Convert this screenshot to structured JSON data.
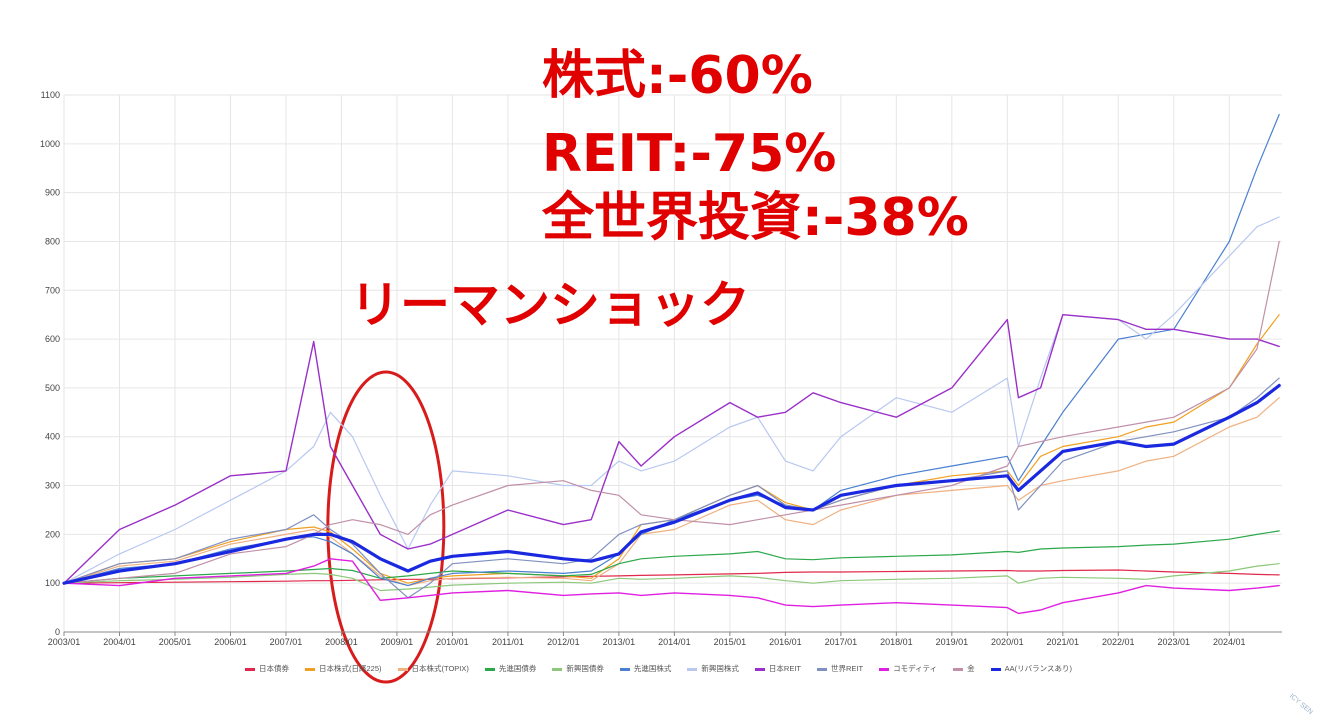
{
  "annotations": {
    "stock": "株式:-60%",
    "reit": "REIT:-75%",
    "world": "全世界投資:-38%",
    "lehman": "リーマンショック"
  },
  "highlight_color": "#d81b1b",
  "watermark": "ICY SEN",
  "chart_data": {
    "type": "line",
    "title": "",
    "xlabel": "",
    "ylabel": "",
    "ylim": [
      0,
      1100
    ],
    "yticks": [
      0,
      100,
      200,
      300,
      400,
      500,
      600,
      700,
      800,
      900,
      1000,
      1100
    ],
    "x_ticks": [
      "2003/01",
      "2004/01",
      "2005/01",
      "2006/01",
      "2007/01",
      "2008/01",
      "2009/01",
      "2010/01",
      "2011/01",
      "2012/01",
      "2013/01",
      "2014/01",
      "2015/01",
      "2016/01",
      "2017/01",
      "2018/01",
      "2019/01",
      "2020/01",
      "2021/01",
      "2022/01",
      "2023/01",
      "2024/01"
    ],
    "x": [
      2003.0,
      2004.0,
      2005.0,
      2006.0,
      2007.0,
      2007.5,
      2007.8,
      2008.2,
      2008.7,
      2009.2,
      2009.6,
      2010.0,
      2011.0,
      2012.0,
      2012.5,
      2013.0,
      2013.4,
      2014.0,
      2015.0,
      2015.5,
      2016.0,
      2016.5,
      2017.0,
      2018.0,
      2019.0,
      2020.0,
      2020.2,
      2020.6,
      2021.0,
      2022.0,
      2022.5,
      2023.0,
      2024.0,
      2024.5,
      2024.9
    ],
    "grid": true,
    "legend_position": "bottom",
    "series": [
      {
        "name": "日本債券",
        "color": "#e0284a",
        "width": 1.2,
        "values": [
          100,
          101,
          102,
          103,
          104,
          105,
          105,
          106,
          107,
          108,
          108,
          109,
          111,
          113,
          114,
          115,
          116,
          117,
          119,
          120,
          122,
          123,
          123,
          124,
          125,
          126,
          125,
          125,
          126,
          127,
          125,
          123,
          120,
          118,
          117
        ]
      },
      {
        "name": "日本株式(日経225)",
        "color": "#f0a020",
        "width": 1.2,
        "values": [
          100,
          140,
          150,
          185,
          210,
          215,
          205,
          170,
          120,
          100,
          110,
          115,
          120,
          115,
          110,
          150,
          220,
          230,
          280,
          300,
          265,
          250,
          270,
          300,
          320,
          330,
          300,
          360,
          380,
          400,
          420,
          430,
          500,
          590,
          650
        ]
      },
      {
        "name": "日本株式(TOPIX)",
        "color": "#f0b080",
        "width": 1.2,
        "values": [
          100,
          135,
          145,
          180,
          200,
          210,
          195,
          160,
          115,
          95,
          105,
          110,
          112,
          110,
          105,
          140,
          200,
          210,
          260,
          270,
          230,
          220,
          250,
          280,
          290,
          300,
          270,
          300,
          310,
          330,
          350,
          360,
          420,
          440,
          480
        ]
      },
      {
        "name": "先進国債券",
        "color": "#2ca84a",
        "width": 1.2,
        "values": [
          100,
          110,
          115,
          120,
          125,
          128,
          130,
          126,
          110,
          115,
          120,
          125,
          120,
          115,
          118,
          140,
          150,
          155,
          160,
          165,
          150,
          148,
          152,
          155,
          158,
          165,
          163,
          170,
          172,
          175,
          178,
          180,
          190,
          200,
          207
        ]
      },
      {
        "name": "新興国債券",
        "color": "#8cc87a",
        "width": 1.2,
        "values": [
          100,
          105,
          108,
          112,
          118,
          120,
          118,
          110,
          85,
          88,
          92,
          96,
          100,
          102,
          100,
          110,
          108,
          110,
          115,
          112,
          105,
          100,
          105,
          108,
          110,
          115,
          100,
          110,
          112,
          110,
          108,
          115,
          125,
          135,
          140
        ]
      },
      {
        "name": "先進国株式",
        "color": "#4a80d0",
        "width": 1.2,
        "values": [
          100,
          130,
          140,
          170,
          190,
          195,
          185,
          160,
          110,
          95,
          110,
          120,
          125,
          120,
          125,
          160,
          200,
          230,
          270,
          280,
          260,
          250,
          290,
          320,
          340,
          360,
          310,
          380,
          450,
          600,
          610,
          620,
          800,
          950,
          1060
        ]
      },
      {
        "name": "新興国株式",
        "color": "#b8c8f0",
        "width": 1.2,
        "values": [
          100,
          160,
          210,
          270,
          330,
          380,
          450,
          400,
          280,
          170,
          260,
          330,
          320,
          300,
          300,
          350,
          330,
          350,
          420,
          440,
          350,
          330,
          400,
          480,
          450,
          520,
          380,
          520,
          650,
          640,
          600,
          650,
          770,
          830,
          850
        ]
      },
      {
        "name": "日本REIT",
        "color": "#9a30c8",
        "width": 1.4,
        "values": [
          100,
          210,
          260,
          320,
          330,
          595,
          380,
          300,
          200,
          170,
          180,
          200,
          250,
          220,
          230,
          390,
          340,
          400,
          470,
          440,
          450,
          490,
          470,
          440,
          500,
          640,
          480,
          500,
          650,
          640,
          620,
          620,
          600,
          600,
          585
        ]
      },
      {
        "name": "世界REIT",
        "color": "#8090c0",
        "width": 1.2,
        "values": [
          100,
          140,
          150,
          190,
          210,
          240,
          210,
          180,
          120,
          70,
          100,
          140,
          150,
          140,
          150,
          200,
          220,
          230,
          280,
          300,
          260,
          250,
          270,
          300,
          310,
          330,
          250,
          300,
          350,
          390,
          400,
          410,
          440,
          480,
          520
        ]
      },
      {
        "name": "コモディティ",
        "color": "#e020e0",
        "width": 1.4,
        "values": [
          100,
          95,
          110,
          115,
          120,
          135,
          150,
          145,
          65,
          70,
          75,
          80,
          85,
          75,
          78,
          80,
          75,
          80,
          75,
          70,
          55,
          52,
          55,
          60,
          55,
          50,
          38,
          45,
          60,
          80,
          95,
          90,
          85,
          90,
          95
        ]
      },
      {
        "name": "金",
        "color": "#c090a8",
        "width": 1.2,
        "values": [
          100,
          110,
          120,
          160,
          175,
          200,
          220,
          230,
          220,
          200,
          240,
          260,
          300,
          310,
          290,
          280,
          240,
          230,
          220,
          230,
          240,
          250,
          260,
          280,
          300,
          340,
          380,
          390,
          400,
          420,
          430,
          440,
          500,
          580,
          800
        ]
      },
      {
        "name": "AA(リバランスあり)",
        "color": "#1a28e0",
        "width": 3.2,
        "values": [
          100,
          125,
          140,
          165,
          190,
          200,
          200,
          185,
          150,
          125,
          145,
          155,
          165,
          150,
          145,
          160,
          205,
          225,
          270,
          285,
          255,
          250,
          280,
          300,
          310,
          320,
          290,
          330,
          370,
          390,
          380,
          385,
          440,
          470,
          505
        ]
      }
    ]
  }
}
